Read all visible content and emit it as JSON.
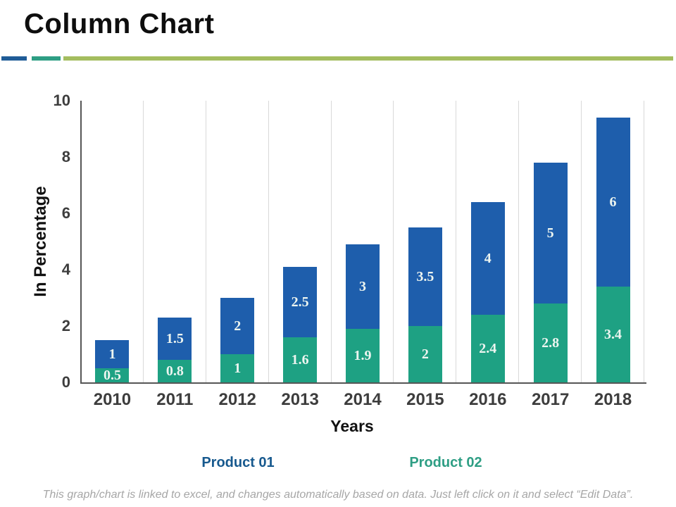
{
  "slide": {
    "title": "Column Chart",
    "footer": "This graph/chart is linked to excel, and changes automatically based on data. Just left click on it and select “Edit Data”."
  },
  "decoration": {
    "rule_colors": [
      "#1F5C97",
      "#2E9E84",
      "#A4BD5F"
    ]
  },
  "chart_data": {
    "type": "bar",
    "stacked": true,
    "title": "",
    "xlabel": "Years",
    "ylabel": "In Percentage",
    "ylim": [
      0,
      10
    ],
    "yticks": [
      "0",
      "2",
      "4",
      "6",
      "8",
      "10"
    ],
    "grid": "vertical-category-separators",
    "legend_position": "bottom",
    "categories": [
      "2010",
      "2011",
      "2012",
      "2013",
      "2014",
      "2015",
      "2016",
      "2017",
      "2018"
    ],
    "series": [
      {
        "name": "Product 02",
        "stack": "bottom",
        "color": "#1EA183",
        "label_color": "#EDF5F0",
        "values": [
          0.5,
          0.8,
          1,
          1.6,
          1.9,
          2,
          2.4,
          2.8,
          3.4
        ]
      },
      {
        "name": "Product 01",
        "stack": "top",
        "color": "#1E5EAC",
        "label_color": "#EDF5F0",
        "values": [
          1,
          1.5,
          2,
          2.5,
          3,
          3.5,
          4,
          5,
          6
        ]
      }
    ],
    "legend": [
      {
        "label": "Product 01",
        "color": "#17598E"
      },
      {
        "label": "Product 02",
        "color": "#2E9E84"
      }
    ]
  }
}
